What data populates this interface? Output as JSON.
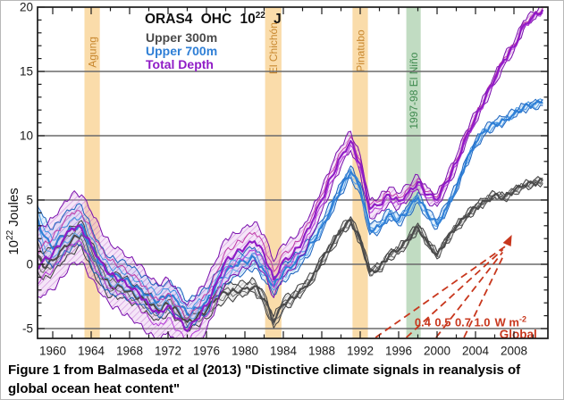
{
  "figure": {
    "title": {
      "base": "ORAS4 OHC 10",
      "sup": "22",
      "end": " J"
    },
    "legend": [
      {
        "label": "Upper 300m"
      },
      {
        "label": "Upper 700m"
      },
      {
        "label": "Total Depth"
      }
    ],
    "y_axis_label": {
      "base": "10",
      "sup": "22",
      "end": " Joules"
    },
    "caption": "Figure 1 from Balmaseda et al (2013) \"Distinctive climate signals in reanalysis of global ocean heat content\""
  },
  "chart_data": {
    "type": "line",
    "title": "ORAS4 OHC 10^22 J",
    "ylabel": "10^22 Joules",
    "xlabel": "",
    "xlim": [
      1958.4,
      2011.5
    ],
    "ylim": [
      -5.7,
      20.0
    ],
    "grid": "horizontal-only",
    "legend_position": "inside-top-left",
    "background": "#FFFFFF",
    "years_start": 1958,
    "x_step": 1,
    "x_major_ticks": [
      1960,
      1964,
      1968,
      1972,
      1976,
      1980,
      1984,
      1988,
      1992,
      1996,
      2000,
      2004,
      2008
    ],
    "x_minor_step": 2,
    "y_major_ticks": [
      -5,
      0,
      5,
      10,
      15,
      20
    ],
    "y_minor_step": 1,
    "gridline_values": [
      -5,
      0,
      5,
      10,
      15
    ],
    "series": [
      {
        "name": "Upper 300m",
        "color": "#4A4A4A",
        "values": [
          1.2,
          -0.2,
          0.3,
          1.2,
          1.9,
          2.4,
          0.7,
          -0.7,
          -1.7,
          -1.7,
          -2.1,
          -2.6,
          -3.1,
          -3.6,
          -3.1,
          -3.6,
          -4.5,
          -4.1,
          -3.6,
          -2.7,
          -2.2,
          -2.1,
          -1.9,
          -1.7,
          -2.7,
          -4.5,
          -3.1,
          -2.6,
          -1.9,
          -1.1,
          0.3,
          1.4,
          2.6,
          3.4,
          1.9,
          -0.6,
          -0.3,
          0.7,
          1.1,
          1.9,
          2.9,
          1.7,
          0.7,
          1.9,
          2.9,
          3.7,
          4.4,
          4.9,
          5.4,
          5.2,
          5.7,
          6.1,
          6.3,
          6.5
        ],
        "spread": [
          1.0,
          1.0,
          1.05,
          1.05,
          1.05,
          1.0,
          1.0,
          0.95,
          0.9,
          0.9,
          0.85,
          0.8,
          0.8,
          0.75,
          0.75,
          0.7,
          0.7,
          0.65,
          0.65,
          0.6,
          0.6,
          0.55,
          0.5,
          0.5,
          0.5,
          0.45,
          0.45,
          0.4,
          0.4,
          0.38,
          0.35,
          0.35,
          0.32,
          0.3,
          0.3,
          0.3,
          0.3,
          0.3,
          0.3,
          0.3,
          0.3,
          0.28,
          0.28,
          0.26,
          0.26,
          0.25,
          0.25,
          0.24,
          0.22,
          0.22,
          0.22,
          0.2,
          0.2,
          0.2
        ]
      },
      {
        "name": "Upper 700m",
        "color": "#2F7FD6",
        "values": [
          4.3,
          2.3,
          1.2,
          2.2,
          2.8,
          3.1,
          1.4,
          0.0,
          -0.9,
          -1.0,
          -1.4,
          -1.9,
          -2.4,
          -2.9,
          -2.4,
          -2.9,
          -3.9,
          -3.4,
          -2.9,
          -1.6,
          -0.6,
          -0.1,
          0.2,
          0.5,
          -0.5,
          -1.7,
          -0.6,
          -0.1,
          0.7,
          1.7,
          2.9,
          4.4,
          5.9,
          7.2,
          5.9,
          2.7,
          2.9,
          3.9,
          3.4,
          4.2,
          5.2,
          3.9,
          3.1,
          4.4,
          5.9,
          7.9,
          9.4,
          10.4,
          10.9,
          11.2,
          11.7,
          12.2,
          12.4,
          12.6
        ],
        "spread": [
          1.3,
          1.4,
          1.5,
          1.5,
          1.5,
          1.5,
          1.5,
          1.4,
          1.4,
          1.3,
          1.3,
          1.2,
          1.2,
          1.2,
          1.1,
          1.1,
          1.0,
          1.0,
          1.0,
          0.9,
          0.9,
          0.85,
          0.8,
          0.8,
          0.75,
          0.7,
          0.7,
          0.65,
          0.6,
          0.55,
          0.5,
          0.5,
          0.45,
          0.45,
          0.45,
          0.4,
          0.4,
          0.4,
          0.4,
          0.4,
          0.38,
          0.35,
          0.35,
          0.35,
          0.32,
          0.3,
          0.3,
          0.3,
          0.28,
          0.28,
          0.27,
          0.26,
          0.25,
          0.25
        ]
      },
      {
        "name": "Total Depth",
        "color": "#8F1BC6",
        "values": [
          -0.5,
          0.3,
          0.8,
          1.8,
          2.8,
          2.8,
          1.5,
          0.2,
          -0.8,
          -1.2,
          -1.8,
          -2.3,
          -3.2,
          -3.8,
          -3.2,
          -4.2,
          -5.2,
          -4.3,
          -3.2,
          -1.5,
          0.3,
          0.8,
          1.3,
          1.8,
          0.8,
          -1.2,
          0.3,
          0.8,
          1.8,
          3.3,
          5.0,
          6.8,
          8.4,
          9.6,
          7.8,
          4.3,
          4.6,
          5.4,
          4.9,
          5.6,
          6.4,
          5.4,
          5.0,
          6.4,
          7.9,
          9.9,
          11.4,
          12.9,
          14.4,
          15.9,
          16.9,
          18.6,
          19.3,
          19.8
        ],
        "spread": [
          2.6,
          2.7,
          2.8,
          2.8,
          2.7,
          2.6,
          2.6,
          2.5,
          2.4,
          2.4,
          2.3,
          2.3,
          2.2,
          2.2,
          2.1,
          2.1,
          2.0,
          2.0,
          1.9,
          1.8,
          1.7,
          1.6,
          1.6,
          1.5,
          1.5,
          1.4,
          1.3,
          1.2,
          1.1,
          1.0,
          0.9,
          0.85,
          0.8,
          0.75,
          0.7,
          0.7,
          0.65,
          0.6,
          0.6,
          0.6,
          0.55,
          0.55,
          0.5,
          0.5,
          0.5,
          0.45,
          0.45,
          0.4,
          0.4,
          0.4,
          0.35,
          0.35,
          0.3,
          0.3
        ]
      }
    ],
    "event_bands": [
      {
        "label": "Agung",
        "start": 1963.3,
        "end": 1964.9,
        "fill": "rgba(247,197,114,0.6)",
        "label_color": "#C8872E",
        "label_y_value": 16.5
      },
      {
        "label": "El Chichón",
        "start": 1982.1,
        "end": 1983.8,
        "fill": "rgba(247,197,114,0.6)",
        "label_color": "#C8872E",
        "label_y_value": 16.8
      },
      {
        "label": "Pinatubo",
        "start": 1991.2,
        "end": 1992.8,
        "fill": "rgba(247,197,114,0.6)",
        "label_color": "#C8872E",
        "label_y_value": 16.6
      },
      {
        "label": "1997-98 El Niño",
        "start": 1996.8,
        "end": 1998.3,
        "fill": "rgba(151,197,153,0.6)",
        "label_color": "#3F8A4F",
        "label_y_value": 13.5
      }
    ],
    "radiative_fan": {
      "color": "#C8371D",
      "converge_year": 2007.5,
      "converge_value": 1.6,
      "lines": [
        {
          "label": "0.4",
          "start_year": 1993.6,
          "label_year": 1998.5
        },
        {
          "label": "0.5",
          "start_year": 1996.8,
          "label_year": 2000.6
        },
        {
          "label": "0.7",
          "start_year": 1999.9,
          "label_year": 2002.7
        },
        {
          "label": "1.0",
          "start_year": 2002.8,
          "label_year": 2004.7
        }
      ],
      "labels_value": -4.55,
      "unit_base": "W m",
      "unit_exp": "-2",
      "unit_year": 2006.0,
      "region_label": "Global",
      "region_year": 2010.4,
      "region_value": -5.5
    }
  }
}
